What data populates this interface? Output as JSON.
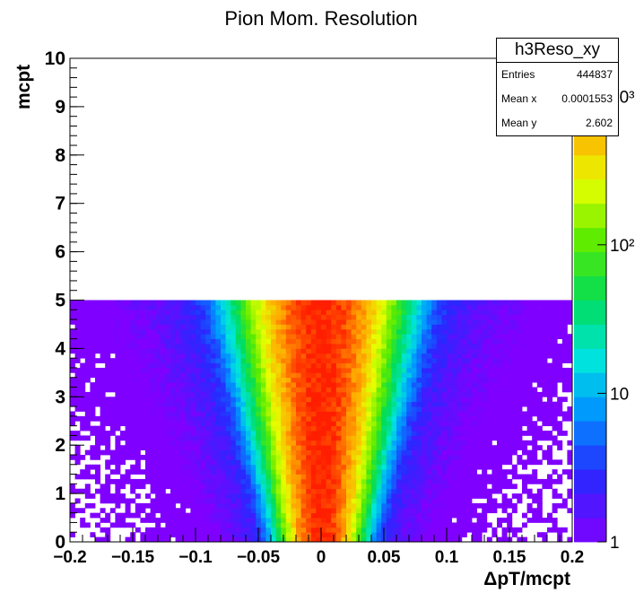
{
  "chart_data": {
    "type": "heatmap",
    "title": "Pion Mom. Resolution",
    "xlabel": "ΔpT/mcpt",
    "ylabel": "mcpt",
    "xlim": [
      -0.2,
      0.2
    ],
    "ylim": [
      0,
      10
    ],
    "x_ticks": [
      "−0.2",
      "−0.15",
      "−0.1",
      "−0.05",
      "0",
      "0.05",
      "0.1",
      "0.15",
      "0.2"
    ],
    "y_ticks": [
      "0",
      "1",
      "2",
      "3",
      "4",
      "5",
      "6",
      "7",
      "8",
      "9",
      "10"
    ],
    "z_scale": "log",
    "z_ticks": [
      "1",
      "10",
      "10²",
      "10³"
    ],
    "populated_y_range": [
      0,
      5
    ],
    "core_center_x": 0,
    "core_width_x_at_y0": 0.012,
    "core_width_x_at_y5": 0.025,
    "peak_bin_content": 1800
  },
  "stats": {
    "title": "h3Reso_xy",
    "rows": [
      {
        "label": "Entries",
        "value": "444837"
      },
      {
        "label": "Mean x",
        "value": "0.0001553"
      },
      {
        "label": "Mean y",
        "value": "2.602"
      }
    ]
  }
}
